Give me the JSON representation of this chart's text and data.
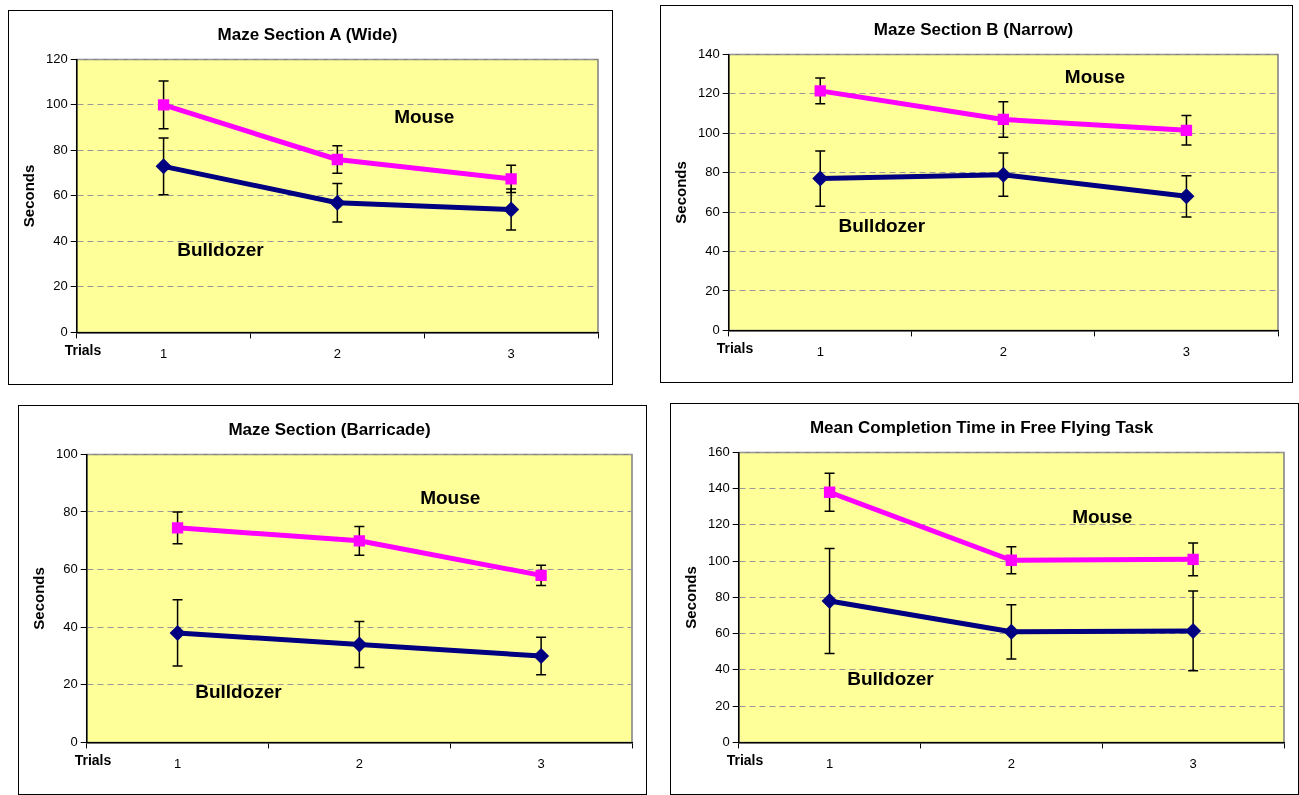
{
  "chart_data": [
    {
      "type": "line",
      "title": "Maze Section A (Wide)",
      "xlabel": "Trials",
      "ylabel": "Seconds",
      "categories": [
        "1",
        "2",
        "3"
      ],
      "ylim": [
        0,
        120
      ],
      "yticks": [
        0,
        20,
        40,
        60,
        80,
        100,
        120
      ],
      "grid": "y",
      "legend": false,
      "line_style": "solid",
      "series": [
        {
          "name": "Mouse",
          "color": "#ff00ff",
          "marker": "square",
          "values": [
            100,
            76,
            67.5
          ],
          "errors": [
            10.5,
            6,
            6
          ]
        },
        {
          "name": "Bulldozer",
          "color": "#000080",
          "marker": "diamond",
          "values": [
            73,
            57,
            54
          ],
          "errors": [
            12.5,
            8.5,
            9
          ]
        }
      ]
    },
    {
      "type": "line",
      "title": "Maze Section B (Narrow)",
      "xlabel": "Trials",
      "ylabel": "Seconds",
      "categories": [
        "1",
        "2",
        "3"
      ],
      "ylim": [
        0,
        140
      ],
      "yticks": [
        0,
        20,
        40,
        60,
        80,
        100,
        120,
        140
      ],
      "grid": "y",
      "legend": false,
      "line_style": "solid",
      "series": [
        {
          "name": "Mouse",
          "color": "#ff00ff",
          "marker": "square",
          "values": [
            121.5,
            107,
            101.5
          ],
          "errors": [
            6.5,
            9,
            7.5
          ]
        },
        {
          "name": "Bulldozer",
          "color": "#000080",
          "marker": "diamond",
          "values": [
            77,
            79,
            68
          ],
          "errors": [
            14,
            11,
            10.5
          ]
        }
      ]
    },
    {
      "type": "line",
      "title": "Maze Section (Barricade)",
      "xlabel": "Trials",
      "ylabel": "Seconds",
      "categories": [
        "1",
        "2",
        "3"
      ],
      "ylim": [
        0,
        100
      ],
      "yticks": [
        0,
        20,
        40,
        60,
        80,
        100
      ],
      "grid": "y",
      "legend": false,
      "line_style": "solid",
      "series": [
        {
          "name": "Mouse",
          "color": "#ff00ff",
          "marker": "square",
          "values": [
            74.5,
            70,
            58
          ],
          "errors": [
            5.5,
            5,
            3.5
          ]
        },
        {
          "name": "Bulldozer",
          "color": "#000080",
          "marker": "diamond",
          "values": [
            38,
            34,
            30
          ],
          "errors": [
            11.5,
            8,
            6.5
          ]
        }
      ]
    },
    {
      "type": "line",
      "title": "Mean Completion Time in Free Flying Task",
      "xlabel": "Trials",
      "ylabel": "Seconds",
      "categories": [
        "1",
        "2",
        "3"
      ],
      "ylim": [
        0,
        160
      ],
      "yticks": [
        0,
        20,
        40,
        60,
        80,
        100,
        120,
        140,
        160
      ],
      "grid": "y",
      "legend": false,
      "line_style": "solid",
      "series": [
        {
          "name": "Mouse",
          "color": "#ff00ff",
          "marker": "square",
          "values": [
            138,
            100.5,
            101
          ],
          "errors": [
            10.5,
            7.5,
            9
          ]
        },
        {
          "name": "Bulldozer",
          "color": "#000080",
          "marker": "diamond",
          "values": [
            78,
            61,
            61.5
          ],
          "errors": [
            29,
            15,
            22
          ]
        }
      ]
    }
  ]
}
